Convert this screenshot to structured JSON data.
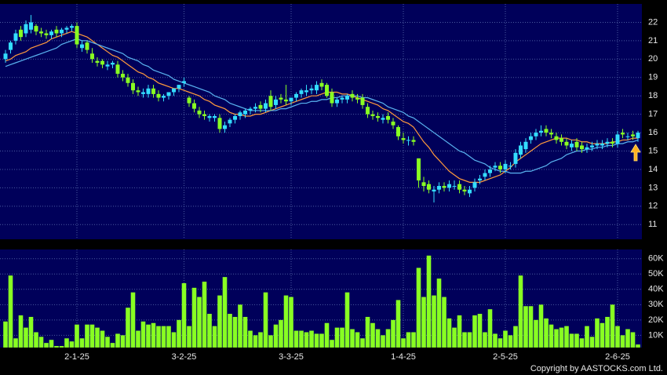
{
  "chart_data": [
    {
      "type": "candlestick",
      "grid": true,
      "up_color": "#33ddff",
      "down_color": "#88ff22",
      "ylim": [
        10.2,
        23.0
      ],
      "yticks": [
        11,
        12,
        13,
        14,
        15,
        16,
        17,
        18,
        19,
        20,
        21,
        22
      ],
      "categories": [
        null,
        null,
        null,
        null,
        null,
        null,
        null,
        null,
        null,
        null,
        null,
        null,
        null,
        null,
        "2-1-25",
        null,
        null,
        null,
        null,
        null,
        null,
        null,
        null,
        null,
        null,
        null,
        null,
        null,
        null,
        null,
        null,
        null,
        null,
        null,
        null,
        "3-2-25",
        null,
        null,
        null,
        null,
        null,
        null,
        null,
        null,
        null,
        null,
        null,
        null,
        null,
        null,
        null,
        null,
        null,
        null,
        null,
        null,
        "3-3-25",
        null,
        null,
        null,
        null,
        null,
        null,
        null,
        null,
        null,
        null,
        null,
        null,
        null,
        null,
        null,
        null,
        null,
        null,
        null,
        null,
        null,
        "1-4-25",
        null,
        null,
        null,
        null,
        null,
        null,
        null,
        null,
        null,
        null,
        null,
        null,
        null,
        null,
        null,
        null,
        null,
        null,
        null,
        "2-5-25",
        null,
        null,
        null,
        null,
        null,
        null,
        null,
        null,
        null,
        null,
        null,
        null,
        null,
        null,
        null,
        null,
        null,
        null,
        null,
        null,
        null,
        "2-6-25",
        null,
        null,
        null,
        null
      ],
      "open": [
        20.0,
        20.5,
        21.0,
        21.6,
        21.4,
        21.6,
        21.8,
        21.5,
        21.4,
        21.3,
        21.6,
        21.4,
        21.6,
        21.7,
        21.8,
        20.6,
        20.9,
        20.3,
        19.9,
        19.9,
        19.6,
        19.7,
        19.7,
        19.2,
        19.0,
        18.7,
        18.3,
        18.1,
        18.1,
        18.4,
        18.1,
        17.9,
        18.0,
        18.2,
        18.4,
        18.7,
        17.9,
        17.6,
        17.2,
        17.0,
        16.8,
        16.8,
        16.8,
        16.2,
        16.5,
        16.7,
        16.9,
        17.0,
        17.2,
        17.3,
        17.5,
        17.3,
        18.0,
        17.5,
        17.9,
        17.8,
        17.7,
        17.9,
        18.1,
        18.2,
        18.3,
        18.3,
        18.7,
        18.6,
        18.2,
        17.6,
        17.8,
        17.8,
        18.1,
        17.9,
        17.9,
        17.4,
        17.0,
        16.9,
        16.7,
        16.9,
        16.6,
        16.3,
        15.7,
        15.6,
        15.6,
        14.6,
        13.3,
        13.2,
        12.8,
        12.9,
        13.1,
        13.0,
        13.1,
        13.2,
        12.9,
        12.7,
        13.0,
        13.4,
        13.6,
        13.8,
        14.1,
        14.2,
        14.0,
        14.2,
        14.3,
        14.8,
        15.1,
        15.6,
        15.8,
        16.0,
        16.2,
        16.0,
        15.8,
        15.7,
        15.5,
        15.2,
        15.5,
        15.3,
        15.1,
        15.2,
        15.3,
        15.3,
        15.4,
        15.5,
        15.4,
        16.0,
        15.8,
        15.9,
        15.7
      ],
      "high": [
        20.5,
        21.0,
        21.6,
        21.8,
        22.1,
        22.4,
        21.9,
        21.7,
        21.6,
        21.6,
        21.8,
        21.7,
        21.8,
        21.9,
        22.0,
        21.0,
        21.0,
        20.6,
        20.1,
        20.0,
        19.9,
        19.9,
        19.9,
        19.4,
        19.2,
        18.9,
        18.5,
        18.4,
        18.6,
        18.6,
        18.3,
        18.1,
        18.2,
        18.4,
        18.6,
        19.0,
        18.0,
        17.8,
        17.4,
        17.2,
        17.0,
        17.0,
        17.0,
        16.6,
        16.8,
        17.0,
        17.2,
        17.3,
        17.4,
        17.6,
        17.7,
        17.8,
        18.3,
        18.0,
        18.1,
        18.6,
        17.9,
        18.2,
        18.4,
        18.6,
        18.6,
        18.8,
        18.9,
        18.7,
        18.4,
        17.9,
        18.0,
        18.1,
        18.3,
        18.1,
        18.1,
        17.6,
        17.2,
        17.1,
        17.0,
        17.1,
        16.8,
        16.4,
        16.0,
        15.8,
        15.8,
        14.6,
        13.6,
        13.4,
        13.1,
        13.3,
        13.3,
        13.4,
        13.4,
        13.4,
        13.1,
        13.1,
        13.5,
        13.7,
        14.0,
        14.2,
        14.4,
        14.4,
        14.5,
        14.4,
        15.1,
        15.5,
        15.7,
        16.0,
        16.2,
        16.4,
        16.4,
        16.2,
        16.0,
        15.9,
        15.7,
        15.6,
        15.7,
        15.5,
        15.4,
        15.5,
        15.6,
        15.6,
        15.7,
        15.7,
        16.1,
        16.2,
        16.0,
        16.1,
        16.1
      ],
      "low": [
        19.8,
        20.3,
        20.8,
        21.0,
        21.2,
        21.4,
        21.3,
        21.2,
        21.1,
        21.1,
        21.2,
        21.2,
        21.4,
        21.5,
        20.6,
        20.4,
        20.3,
        19.8,
        19.6,
        19.5,
        19.4,
        19.5,
        19.0,
        18.8,
        18.5,
        18.1,
        18.0,
        17.9,
        17.9,
        17.9,
        17.7,
        17.7,
        17.8,
        18.0,
        18.2,
        18.5,
        17.4,
        17.1,
        16.8,
        16.7,
        16.6,
        16.6,
        16.0,
        16.0,
        16.3,
        16.5,
        16.7,
        16.8,
        17.0,
        17.1,
        17.1,
        17.1,
        17.2,
        17.3,
        17.6,
        17.5,
        17.5,
        17.7,
        17.9,
        18.0,
        18.1,
        18.1,
        18.3,
        17.9,
        17.4,
        17.4,
        17.6,
        17.6,
        17.7,
        17.6,
        17.3,
        16.8,
        16.7,
        16.6,
        16.5,
        16.5,
        16.2,
        15.6,
        15.4,
        15.3,
        15.3,
        13.0,
        12.8,
        12.7,
        12.2,
        12.7,
        12.8,
        12.8,
        12.9,
        12.7,
        12.6,
        12.5,
        12.8,
        13.2,
        13.4,
        13.6,
        13.9,
        13.8,
        13.8,
        14.0,
        14.1,
        14.6,
        14.9,
        15.4,
        15.6,
        15.8,
        15.8,
        15.7,
        15.4,
        15.3,
        15.1,
        15.0,
        15.0,
        14.9,
        14.9,
        15.0,
        15.1,
        15.1,
        15.2,
        15.2,
        15.2,
        15.7,
        15.6,
        15.6,
        15.5
      ],
      "close": [
        20.3,
        20.9,
        21.4,
        21.2,
        21.9,
        22.0,
        21.5,
        21.4,
        21.3,
        21.5,
        21.4,
        21.6,
        21.7,
        21.8,
        20.8,
        20.8,
        20.5,
        20.0,
        19.8,
        19.7,
        19.7,
        19.8,
        19.2,
        19.0,
        18.7,
        18.3,
        18.2,
        18.2,
        18.4,
        18.1,
        17.9,
        18.0,
        18.2,
        18.4,
        18.6,
        18.8,
        17.6,
        17.3,
        17.0,
        16.9,
        16.9,
        16.9,
        16.2,
        16.4,
        16.7,
        16.9,
        17.1,
        17.2,
        17.3,
        17.4,
        17.3,
        17.6,
        17.4,
        17.8,
        17.8,
        17.7,
        17.9,
        18.1,
        18.3,
        18.3,
        18.4,
        18.6,
        18.5,
        18.0,
        17.6,
        17.8,
        17.9,
        18.0,
        17.9,
        17.8,
        17.5,
        17.0,
        16.9,
        16.8,
        16.8,
        16.7,
        16.4,
        15.8,
        15.6,
        15.6,
        15.5,
        13.4,
        13.1,
        12.9,
        12.9,
        13.1,
        13.0,
        13.2,
        13.1,
        12.9,
        12.8,
        12.9,
        13.3,
        13.5,
        13.8,
        14.0,
        14.2,
        14.0,
        14.3,
        14.2,
        14.9,
        15.3,
        15.5,
        15.8,
        16.0,
        16.1,
        16.0,
        15.9,
        15.6,
        15.5,
        15.3,
        15.4,
        15.2,
        15.1,
        15.2,
        15.3,
        15.4,
        15.4,
        15.5,
        15.4,
        15.9,
        15.9,
        15.8,
        15.8,
        16.0
      ],
      "series": [
        {
          "color": "#ff9a3c",
          "values": [
            19.9,
            20.0,
            20.2,
            20.3,
            20.4,
            20.6,
            20.7,
            20.8,
            20.9,
            21.1,
            21.2,
            21.3,
            21.4,
            21.5,
            21.4,
            21.3,
            21.2,
            21.0,
            20.8,
            20.6,
            20.4,
            20.2,
            20.1,
            19.9,
            19.7,
            19.5,
            19.3,
            19.2,
            19.0,
            18.9,
            18.7,
            18.6,
            18.5,
            18.4,
            18.4,
            18.3,
            18.2,
            18.1,
            18.0,
            17.8,
            17.7,
            17.5,
            17.4,
            17.3,
            17.1,
            17.0,
            17.0,
            16.9,
            16.9,
            17.0,
            17.0,
            17.1,
            17.2,
            17.3,
            17.4,
            17.5,
            17.6,
            17.7,
            17.8,
            17.9,
            18.0,
            18.0,
            18.1,
            18.2,
            18.2,
            18.2,
            18.1,
            18.1,
            18.0,
            17.9,
            17.8,
            17.7,
            17.6,
            17.5,
            17.3,
            17.2,
            17.0,
            16.8,
            16.6,
            16.5,
            16.3,
            15.9,
            15.5,
            15.2,
            14.8,
            14.5,
            14.2,
            13.9,
            13.7,
            13.5,
            13.4,
            13.3,
            13.3,
            13.3,
            13.4,
            13.5,
            13.6,
            13.7,
            13.9,
            14.1,
            14.4,
            14.6,
            14.8,
            15.0,
            15.2,
            15.4,
            15.5,
            15.6,
            15.7,
            15.7,
            15.7,
            15.6,
            15.6,
            15.5,
            15.5,
            15.4,
            15.4,
            15.4,
            15.4,
            15.5,
            15.5,
            15.6,
            15.6,
            15.7,
            15.7
          ]
        },
        {
          "color": "#5ab4f0",
          "values": [
            19.6,
            19.7,
            19.8,
            19.9,
            20.0,
            20.1,
            20.2,
            20.3,
            20.4,
            20.5,
            20.6,
            20.8,
            20.9,
            21.0,
            21.1,
            21.0,
            21.0,
            20.9,
            20.8,
            20.7,
            20.6,
            20.5,
            20.4,
            20.3,
            20.1,
            20.0,
            19.9,
            19.7,
            19.6,
            19.4,
            19.3,
            19.2,
            19.1,
            18.9,
            18.8,
            18.7,
            18.6,
            18.5,
            18.4,
            18.3,
            18.2,
            18.0,
            17.9,
            17.8,
            17.6,
            17.5,
            17.4,
            17.3,
            17.2,
            17.2,
            17.2,
            17.2,
            17.2,
            17.2,
            17.3,
            17.3,
            17.4,
            17.5,
            17.6,
            17.6,
            17.7,
            17.7,
            17.8,
            17.8,
            17.9,
            17.9,
            18.0,
            18.0,
            18.0,
            18.0,
            17.9,
            17.9,
            17.8,
            17.7,
            17.6,
            17.4,
            17.3,
            17.2,
            17.1,
            16.9,
            16.8,
            16.6,
            16.4,
            16.2,
            16.0,
            15.8,
            15.6,
            15.4,
            15.2,
            15.0,
            14.9,
            14.7,
            14.5,
            14.4,
            14.3,
            14.1,
            14.0,
            13.9,
            13.9,
            13.8,
            13.8,
            13.8,
            13.9,
            13.9,
            14.0,
            14.1,
            14.2,
            14.4,
            14.5,
            14.6,
            14.8,
            14.9,
            15.0,
            15.0,
            15.1,
            15.1,
            15.2,
            15.2,
            15.3,
            15.3,
            15.4,
            15.4,
            15.5,
            15.5,
            15.6
          ]
        }
      ]
    },
    {
      "type": "bar",
      "color": "#88ff22",
      "grid": true,
      "ylim": [
        2000,
        66000
      ],
      "yticks": [
        {
          "value": 10000,
          "label": "10K"
        },
        {
          "value": 20000,
          "label": "20K"
        },
        {
          "value": 30000,
          "label": "30K"
        },
        {
          "value": 40000,
          "label": "40K"
        },
        {
          "value": 50000,
          "label": "50K"
        },
        {
          "value": 60000,
          "label": "60K"
        }
      ],
      "values": [
        19000,
        49000,
        8000,
        23000,
        15000,
        22000,
        12000,
        9000,
        5000,
        7000,
        3000,
        3000,
        8000,
        6000,
        17000,
        8000,
        17000,
        17000,
        15000,
        13000,
        9000,
        5000,
        11000,
        10000,
        28000,
        38000,
        13000,
        19000,
        17000,
        18000,
        16000,
        16000,
        16000,
        12000,
        20000,
        44000,
        16000,
        41000,
        35000,
        45000,
        24000,
        16000,
        36000,
        48000,
        24000,
        22000,
        30000,
        22000,
        13000,
        10000,
        12000,
        38000,
        10000,
        17000,
        20000,
        36000,
        35000,
        13000,
        13000,
        12000,
        13000,
        11000,
        11000,
        18000,
        7000,
        15000,
        15000,
        38000,
        14000,
        12000,
        8000,
        22000,
        18000,
        14000,
        10000,
        14000,
        20000,
        33000,
        8000,
        12000,
        12000,
        54000,
        35000,
        62000,
        36000,
        47000,
        35000,
        21000,
        15000,
        23000,
        12000,
        12000,
        23000,
        24000,
        12000,
        27000,
        11000,
        8000,
        13000,
        10000,
        16000,
        49000,
        29000,
        29000,
        20000,
        30000,
        21000,
        17000,
        14000,
        15000,
        16000,
        11000,
        11000,
        8000,
        16000,
        9000,
        21000,
        18000,
        22000,
        30000,
        16000,
        10000,
        14000,
        12000,
        4000
      ]
    }
  ],
  "copyright": "Copyright by AASTOCKS.com Ltd."
}
